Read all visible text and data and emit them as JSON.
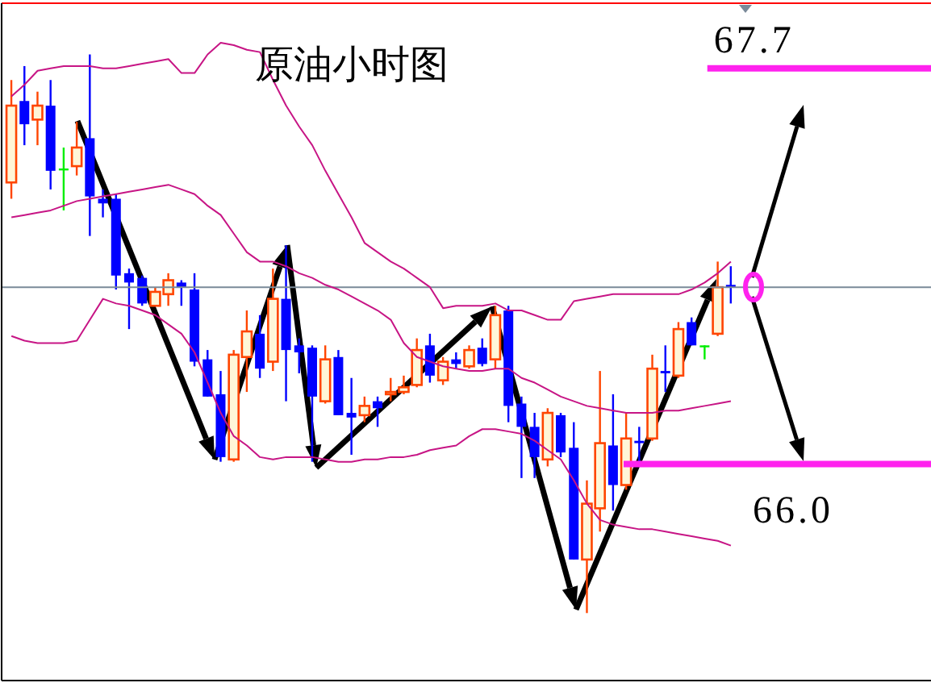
{
  "chart_data": {
    "type": "candlestick",
    "title": "原油小时图",
    "categories": [
      null,
      null,
      null,
      null,
      null,
      null,
      null,
      null,
      null,
      null,
      null,
      null,
      null,
      null,
      null,
      null,
      null,
      null,
      null,
      null,
      null,
      null,
      null,
      null,
      null,
      null,
      null,
      null,
      null,
      null,
      null,
      null,
      null,
      null,
      null,
      null,
      null,
      null,
      null,
      null,
      null,
      null,
      null,
      null,
      null,
      null,
      null,
      null,
      null,
      null,
      null,
      null,
      null,
      null,
      null,
      null
    ],
    "ohlc": [
      [
        67.21,
        67.65,
        67.14,
        67.54
      ],
      [
        67.56,
        67.71,
        67.37,
        67.46
      ],
      [
        67.48,
        67.6,
        67.37,
        67.54
      ],
      [
        67.54,
        67.65,
        67.18,
        67.26
      ],
      [
        67.27,
        67.36,
        67.09,
        67.27
      ],
      [
        67.28,
        67.47,
        67.24,
        67.36
      ],
      [
        67.4,
        67.76,
        66.98,
        67.15
      ],
      [
        67.14,
        67.18,
        67.06,
        67.12
      ],
      [
        67.14,
        67.16,
        66.75,
        66.81
      ],
      [
        66.82,
        66.84,
        66.58,
        66.78
      ],
      [
        66.8,
        66.81,
        66.68,
        66.69
      ],
      [
        66.68,
        66.76,
        66.68,
        66.74
      ],
      [
        66.73,
        66.82,
        66.68,
        66.79
      ],
      [
        66.78,
        66.79,
        66.68,
        66.76
      ],
      [
        66.75,
        66.82,
        66.42,
        66.44
      ],
      [
        66.45,
        66.49,
        66.29,
        66.29
      ],
      [
        66.3,
        66.4,
        66.01,
        66.03
      ],
      [
        66.02,
        66.49,
        66.01,
        66.47
      ],
      [
        66.46,
        66.66,
        66.31,
        66.57
      ],
      [
        66.56,
        66.64,
        66.37,
        66.41
      ],
      [
        66.44,
        66.84,
        66.4,
        66.71
      ],
      [
        66.71,
        66.94,
        66.27,
        66.49
      ],
      [
        66.51,
        66.54,
        66.39,
        66.48
      ],
      [
        66.5,
        66.51,
        66.01,
        66.29
      ],
      [
        66.27,
        66.51,
        66.26,
        66.45
      ],
      [
        66.46,
        66.49,
        66.21,
        66.21
      ],
      [
        66.22,
        66.37,
        66.04,
        66.2
      ],
      [
        66.21,
        66.29,
        66.18,
        66.25
      ],
      [
        66.27,
        66.29,
        66.16,
        66.24
      ],
      [
        66.3,
        66.37,
        66.27,
        66.31
      ],
      [
        66.31,
        66.38,
        66.3,
        66.33
      ],
      [
        66.34,
        66.54,
        66.33,
        66.49
      ],
      [
        66.51,
        66.56,
        66.35,
        66.38
      ],
      [
        66.36,
        66.46,
        66.34,
        66.44
      ],
      [
        66.45,
        66.48,
        66.41,
        66.43
      ],
      [
        66.42,
        66.51,
        66.41,
        66.49
      ],
      [
        66.5,
        66.54,
        66.42,
        66.43
      ],
      [
        66.45,
        66.68,
        66.41,
        66.64
      ],
      [
        66.66,
        66.68,
        66.18,
        66.25
      ],
      [
        66.26,
        66.29,
        65.94,
        66.16
      ],
      [
        66.16,
        66.22,
        65.94,
        66.03
      ],
      [
        66.02,
        66.24,
        65.99,
        66.22
      ],
      [
        66.21,
        66.22,
        66.03,
        66.05
      ],
      [
        66.07,
        66.18,
        65.59,
        65.59
      ],
      [
        65.59,
        65.93,
        65.36,
        65.83
      ],
      [
        65.81,
        66.4,
        65.71,
        66.09
      ],
      [
        66.08,
        66.3,
        65.8,
        65.91
      ],
      [
        65.91,
        66.22,
        65.89,
        66.11
      ],
      [
        66.1,
        66.16,
        66.01,
        66.09
      ],
      [
        66.11,
        66.47,
        66.1,
        66.41
      ],
      [
        66.4,
        66.51,
        66.31,
        66.39
      ],
      [
        66.38,
        66.61,
        66.37,
        66.58
      ],
      [
        66.61,
        66.63,
        66.51,
        66.51
      ],
      [
        66.51,
        66.51,
        66.45,
        66.51
      ],
      [
        66.56,
        66.87,
        66.55,
        66.76
      ],
      [
        66.77,
        66.85,
        66.69,
        66.76
      ]
    ],
    "colors": [
      "#ff4500",
      "#0000ff",
      "#ff4500",
      "#0000ff",
      "#00ee00",
      "#ff4500",
      "#0000ff",
      "#0000ff",
      "#0000ff",
      "#0000ff",
      "#0000ff",
      "#ff4500",
      "#ff4500",
      "#0000ff",
      "#0000ff",
      "#0000ff",
      "#0000ff",
      "#ff4500",
      "#ff4500",
      "#0000ff",
      "#ff4500",
      "#0000ff",
      "#0000ff",
      "#0000ff",
      "#ff4500",
      "#0000ff",
      "#0000ff",
      "#ff4500",
      "#0000ff",
      "#ff4500",
      "#ff4500",
      "#ff4500",
      "#0000ff",
      "#ff4500",
      "#0000ff",
      "#ff4500",
      "#0000ff",
      "#ff4500",
      "#0000ff",
      "#0000ff",
      "#0000ff",
      "#ff4500",
      "#0000ff",
      "#0000ff",
      "#ff4500",
      "#ff4500",
      "#0000ff",
      "#ff4500",
      "#0000ff",
      "#ff4500",
      "#0000ff",
      "#ff4500",
      "#0000ff",
      "#00ee00",
      "#ff4500",
      "#0000ff"
    ],
    "series": [
      {
        "type": "line",
        "color": "#c71585",
        "values": [
          67.58,
          67.63,
          67.69,
          67.7,
          67.71,
          67.71,
          67.71,
          67.7,
          67.7,
          67.71,
          67.72,
          67.73,
          67.74,
          67.68,
          67.68,
          67.76,
          67.81,
          67.8,
          67.78,
          67.77,
          67.65,
          67.54,
          67.45,
          67.37,
          67.26,
          67.16,
          67.06,
          66.95,
          66.91,
          66.87,
          66.84,
          66.8,
          66.76,
          66.67,
          66.68,
          66.68,
          66.68,
          66.69,
          66.66,
          66.66,
          66.64,
          66.62,
          66.62,
          66.7,
          66.71,
          66.72,
          66.73,
          66.73,
          66.73,
          66.73,
          66.73,
          66.73,
          66.75,
          66.78,
          66.82,
          66.87
        ]
      },
      {
        "type": "line",
        "color": "#c71585",
        "values": [
          67.06,
          67.07,
          67.08,
          67.09,
          67.11,
          67.13,
          67.14,
          67.15,
          67.16,
          67.17,
          67.18,
          67.19,
          67.2,
          67.18,
          67.16,
          67.11,
          67.07,
          66.99,
          66.91,
          66.87,
          66.87,
          66.85,
          66.82,
          66.8,
          66.77,
          66.75,
          66.72,
          66.69,
          66.66,
          66.62,
          66.52,
          66.46,
          66.44,
          66.42,
          66.41,
          66.4,
          66.4,
          66.41,
          66.41,
          66.37,
          66.35,
          66.32,
          66.29,
          66.27,
          66.25,
          66.24,
          66.23,
          66.22,
          66.22,
          66.22,
          66.23,
          66.23,
          66.24,
          66.25,
          66.26,
          66.27
        ]
      },
      {
        "type": "line",
        "color": "#c71585",
        "values": [
          66.55,
          66.53,
          66.52,
          66.52,
          66.52,
          66.53,
          66.62,
          66.71,
          66.69,
          66.68,
          66.66,
          66.64,
          66.6,
          66.56,
          66.48,
          66.35,
          66.22,
          66.12,
          66.08,
          66.03,
          66.02,
          66.03,
          66.03,
          66.03,
          66.02,
          66.01,
          66.01,
          66.02,
          66.02,
          66.03,
          66.03,
          66.04,
          66.06,
          66.07,
          66.08,
          66.12,
          66.15,
          66.15,
          66.14,
          66.13,
          66.1,
          66.06,
          66.02,
          65.93,
          65.83,
          65.76,
          65.74,
          65.73,
          65.72,
          65.72,
          65.71,
          65.7,
          65.69,
          65.68,
          65.67,
          65.65
        ]
      }
    ],
    "ref_lines": [
      {
        "axis": "y",
        "value": 67.7,
        "label": "67.7",
        "color": "#ff22ee"
      },
      {
        "axis": "y",
        "value": 66.0,
        "label": "66.0",
        "color": "#ff22ee"
      },
      {
        "axis": "y",
        "value": 66.76,
        "color": "#7a8a99"
      }
    ],
    "ylim": [
      65.07,
      67.98
    ],
    "tick_labels": false
  }
}
